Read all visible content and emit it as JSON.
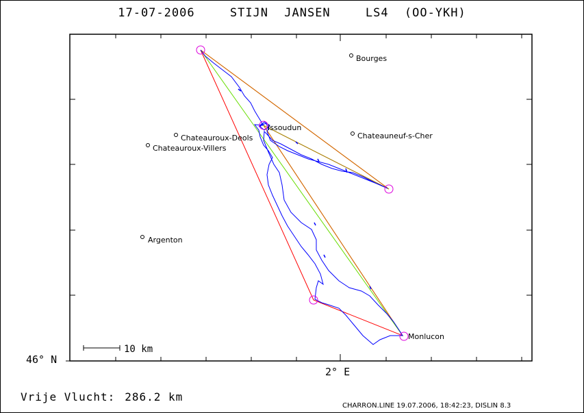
{
  "title": {
    "date": "17-07-2006",
    "pilot": "STIJN JANSEN",
    "glider": "LS4 (OO-YKH)"
  },
  "axes": {
    "lat_label": "46° N",
    "lon_label": "2° E"
  },
  "scale_bar": {
    "label": "10 km"
  },
  "places": [
    {
      "name": "Bourges"
    },
    {
      "name": "Issoudun"
    },
    {
      "name": "Chateauroux-Deols"
    },
    {
      "name": "Chateauroux-Villers"
    },
    {
      "name": "Chateauneuf-s-Cher"
    },
    {
      "name": "Argenton"
    },
    {
      "name": "Monlucon"
    }
  ],
  "summary": {
    "label": "Vrije Vlucht:",
    "value": "286.2 km"
  },
  "footer": "CHARRON.LINE 19.07.2006, 18:42:23, DISLIN 8.3",
  "colors": {
    "track": "#0000ff",
    "triangle_red": "#ff0000",
    "triangle_orange": "#cc7700",
    "triangle_green": "#66dd00",
    "turnpoint": "#dd00dd"
  }
}
